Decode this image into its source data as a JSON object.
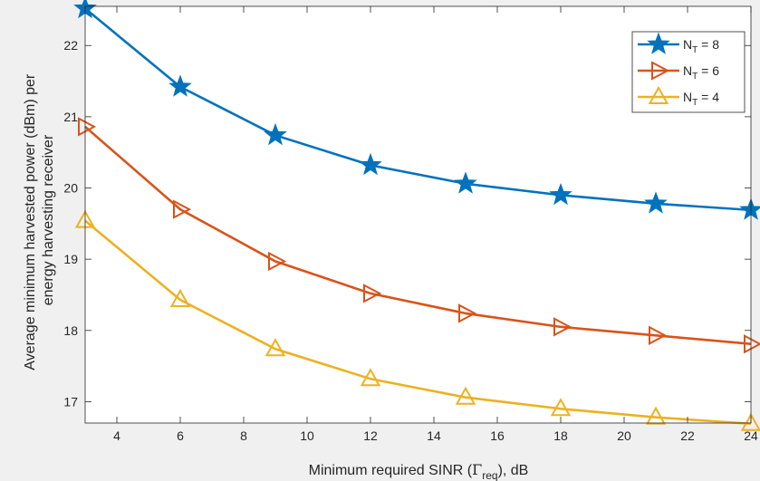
{
  "chart_data": {
    "type": "line",
    "title": "",
    "xlabel_prefix": "Minimum required SINR (",
    "xlabel_gamma": "Γ",
    "xlabel_sub": "req",
    "xlabel_suffix": "), dB",
    "ylabel_line1": "Average minimum harvested power (dBm) per",
    "ylabel_line2": "energy harvesting receiver",
    "xlim": [
      3,
      24
    ],
    "ylim": [
      16.7,
      22.55
    ],
    "x_ticks": [
      4,
      6,
      8,
      10,
      12,
      14,
      16,
      18,
      20,
      22,
      24
    ],
    "y_ticks": [
      17,
      18,
      19,
      20,
      21,
      22
    ],
    "grid": false,
    "legend_position": "top-right",
    "x": [
      3,
      6,
      9,
      12,
      15,
      18,
      21,
      24
    ],
    "series": [
      {
        "legend_main": "N",
        "legend_sub": "T",
        "legend_tail": " = 8",
        "color": "#0072BD",
        "marker": "star",
        "values": [
          22.52,
          21.42,
          20.74,
          20.32,
          20.06,
          19.9,
          19.78,
          19.69
        ]
      },
      {
        "legend_main": "N",
        "legend_sub": "T",
        "legend_tail": " = 6",
        "color": "#D95319",
        "marker": "triangle-right",
        "values": [
          20.86,
          19.7,
          18.97,
          18.52,
          18.24,
          18.05,
          17.93,
          17.81
        ]
      },
      {
        "legend_main": "N",
        "legend_sub": "T",
        "legend_tail": " = 4",
        "color": "#EDB120",
        "marker": "triangle-up",
        "values": [
          19.54,
          18.43,
          17.74,
          17.32,
          17.06,
          16.9,
          16.78,
          16.69
        ]
      }
    ]
  }
}
